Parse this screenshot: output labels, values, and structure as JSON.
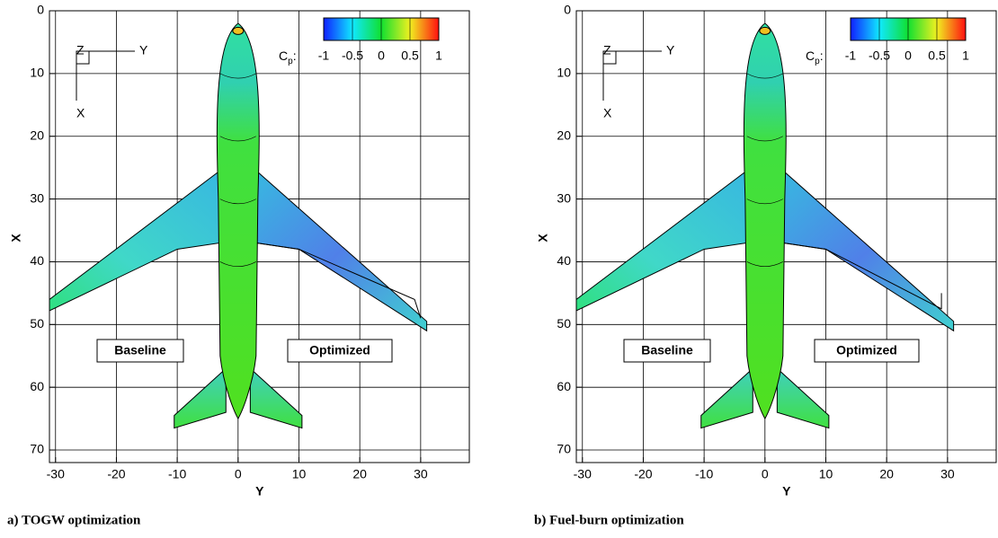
{
  "chart_data": [
    {
      "type": "contour",
      "xlabel": "Y",
      "ylabel": "X",
      "xlim": [
        -31,
        38
      ],
      "ylim": [
        0,
        72
      ],
      "xticks": [
        -30,
        -20,
        -10,
        0,
        10,
        20,
        30
      ],
      "yticks": [
        0,
        10,
        20,
        30,
        40,
        50,
        60,
        70
      ],
      "grid": true,
      "colorbar": {
        "label": "C",
        "label_sub": "p",
        "label_suffix": ":",
        "lim": [
          -1,
          1
        ],
        "ticks": [
          -1,
          -0.5,
          0,
          0.5,
          1
        ]
      },
      "triad": [
        "Z",
        "Y",
        "X"
      ],
      "annotations": [
        "Baseline",
        "Optimized"
      ],
      "caption": "a) TOGW optimization"
    },
    {
      "type": "contour",
      "xlabel": "Y",
      "ylabel": "X",
      "xlim": [
        -31,
        38
      ],
      "ylim": [
        0,
        72
      ],
      "xticks": [
        -30,
        -20,
        -10,
        0,
        10,
        20,
        30
      ],
      "yticks": [
        0,
        10,
        20,
        30,
        40,
        50,
        60,
        70
      ],
      "grid": true,
      "colorbar": {
        "label": "C",
        "label_sub": "p",
        "label_suffix": ":",
        "lim": [
          -1,
          1
        ],
        "ticks": [
          -1,
          -0.5,
          0,
          0.5,
          1
        ]
      },
      "triad": [
        "Z",
        "Y",
        "X"
      ],
      "annotations": [
        "Baseline",
        "Optimized"
      ],
      "caption": "b) Fuel-burn optimization"
    }
  ]
}
